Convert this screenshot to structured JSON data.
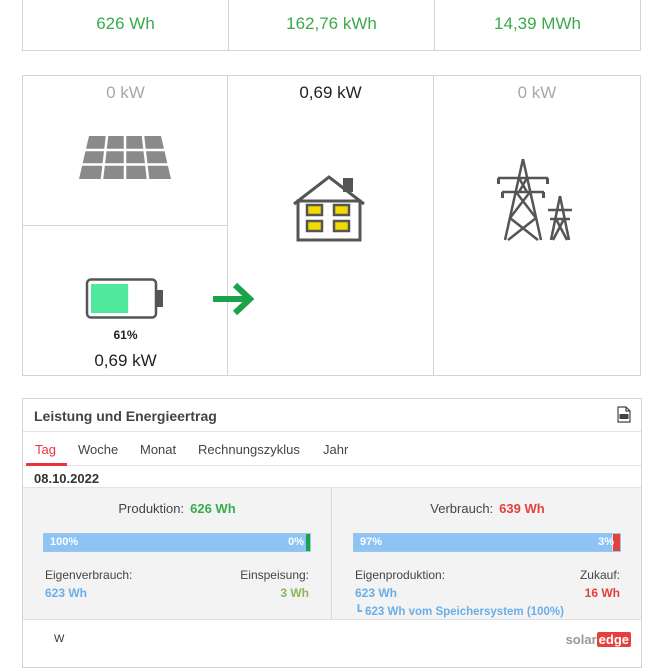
{
  "energy": {
    "today": "626 Wh",
    "month": "162,76 kWh",
    "lifetime": "14,39 MWh"
  },
  "flow": {
    "pv_power": "0 kW",
    "battery_percent": "61%",
    "battery_power": "0,69 kW",
    "battery_level": 0.61,
    "load_power": "0,69 kW",
    "grid_power": "0 kW",
    "colors": {
      "arrow": "#1aa34a",
      "battery_fill": "#4fe89c",
      "window": "#f0dc00"
    }
  },
  "report": {
    "title": "Leistung und Energieertrag",
    "tabs": [
      "Tag",
      "Woche",
      "Monat",
      "Rechnungszyklus",
      "Jahr"
    ],
    "active_tab": "Tag",
    "date": "08.10.2022",
    "production": {
      "label": "Produktion:",
      "value": "626 Wh",
      "bar_left": "100%",
      "bar_right": "0%",
      "share": 1.0,
      "self_label": "Eigenverbrauch:",
      "self_value": "623 Wh",
      "export_label": "Einspeisung:",
      "export_value": "3 Wh"
    },
    "consumption": {
      "label": "Verbrauch:",
      "value": "639 Wh",
      "bar_left": "97%",
      "bar_right": "3%",
      "share": 0.97,
      "self_label": "Eigenproduktion:",
      "self_value": "623 Wh",
      "import_label": "Zukauf:",
      "import_value": "16 Wh",
      "storage_note": "623 Wh vom Speichersystem (100%)"
    },
    "chart_unit": "W",
    "brand": {
      "part1": "solar",
      "part2": "edge"
    }
  }
}
